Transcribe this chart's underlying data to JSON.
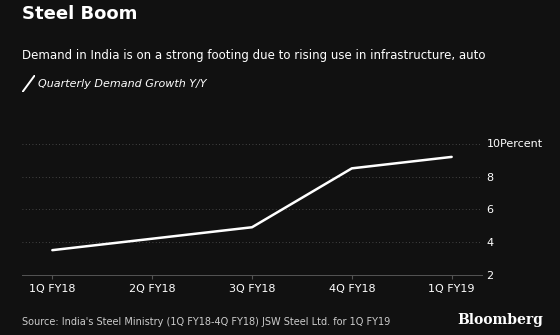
{
  "title": "Steel Boom",
  "subtitle": "Demand in India is on a strong footing due to rising use in infrastructure, auto",
  "legend_label": "Quarterly Demand Growth Y/Y",
  "source": "Source: India's Steel Ministry (1Q FY18-4Q FY18) JSW Steel Ltd. for 1Q FY19",
  "bloomberg": "Bloomberg",
  "x_labels": [
    "1Q FY18",
    "2Q FY18",
    "3Q FY18",
    "4Q FY18",
    "1Q FY19"
  ],
  "y_values": [
    3.5,
    4.2,
    4.9,
    8.5,
    9.2
  ],
  "ylim": [
    2,
    10.6
  ],
  "yticks": [
    2,
    4,
    6,
    8,
    10
  ],
  "line_color": "#ffffff",
  "bg_color": "#111111",
  "text_color": "#ffffff",
  "grid_color": "#555555",
  "source_color": "#cccccc",
  "title_fontsize": 13,
  "subtitle_fontsize": 8.5,
  "axis_fontsize": 8,
  "legend_fontsize": 8,
  "source_fontsize": 7
}
